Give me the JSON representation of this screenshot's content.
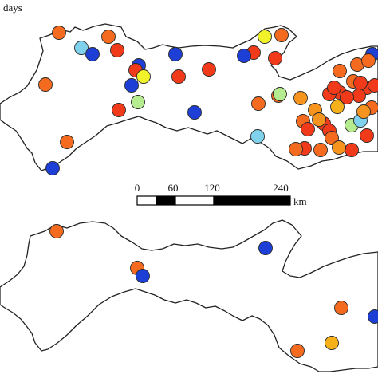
{
  "map": {
    "corner_label": "days",
    "scale_bar": {
      "ticks": [
        "0",
        "60",
        "120",
        "240"
      ],
      "unit": "km"
    },
    "colors": {
      "dark_red": "#e41a1c",
      "red": "#f03a1a",
      "red_orange": "#f46a1e",
      "orange": "#f7941d",
      "amber": "#f5b01a",
      "yellow": "#f2f22a",
      "light_green": "#b5ec8f",
      "light_blue": "#7fd1ec",
      "blue": "#1e3fd6"
    },
    "top_panel_stations": [
      {
        "c": "red_orange"
      },
      {
        "c": "light_blue"
      },
      {
        "c": "blue"
      },
      {
        "c": "red_orange"
      },
      {
        "c": "red"
      },
      {
        "c": "blue"
      },
      {
        "c": "red"
      },
      {
        "c": "blue"
      },
      {
        "c": "yellow"
      },
      {
        "c": "red_orange"
      },
      {
        "c": "red_orange"
      },
      {
        "c": "blue"
      },
      {
        "c": "red"
      },
      {
        "c": "blue"
      },
      {
        "c": "red"
      },
      {
        "c": "red"
      },
      {
        "c": "red"
      },
      {
        "c": "yellow"
      },
      {
        "c": "blue"
      },
      {
        "c": "red_orange"
      },
      {
        "c": "light_green"
      },
      {
        "c": "blue"
      },
      {
        "c": "red_orange"
      },
      {
        "c": "red_orange"
      },
      {
        "c": "red"
      },
      {
        "c": "light_green"
      },
      {
        "c": "orange"
      },
      {
        "c": "blue"
      },
      {
        "c": "red_orange"
      },
      {
        "c": "red_orange"
      },
      {
        "c": "red_orange"
      },
      {
        "c": "red"
      },
      {
        "c": "red_orange"
      },
      {
        "c": "light_blue"
      },
      {
        "c": "red_orange"
      },
      {
        "c": "red"
      },
      {
        "c": "red"
      },
      {
        "c": "red_orange"
      },
      {
        "c": "orange"
      },
      {
        "c": "red"
      },
      {
        "c": "amber"
      },
      {
        "c": "light_green"
      },
      {
        "c": "light_blue"
      },
      {
        "c": "red_orange"
      },
      {
        "c": "red"
      },
      {
        "c": "red"
      },
      {
        "c": "red"
      },
      {
        "c": "red"
      },
      {
        "c": "red"
      },
      {
        "c": "red_orange"
      },
      {
        "c": "red_orange"
      },
      {
        "c": "red"
      },
      {
        "c": "orange"
      },
      {
        "c": "red"
      },
      {
        "c": "red"
      },
      {
        "c": "red"
      },
      {
        "c": "orange"
      },
      {
        "c": "orange"
      },
      {
        "c": "red"
      }
    ],
    "bottom_panel_stations": [
      {
        "c": "red_orange"
      },
      {
        "c": "red_orange"
      },
      {
        "c": "blue"
      },
      {
        "c": "blue"
      },
      {
        "c": "red_orange"
      },
      {
        "c": "red_orange"
      },
      {
        "c": "amber"
      },
      {
        "c": "blue"
      }
    ]
  }
}
